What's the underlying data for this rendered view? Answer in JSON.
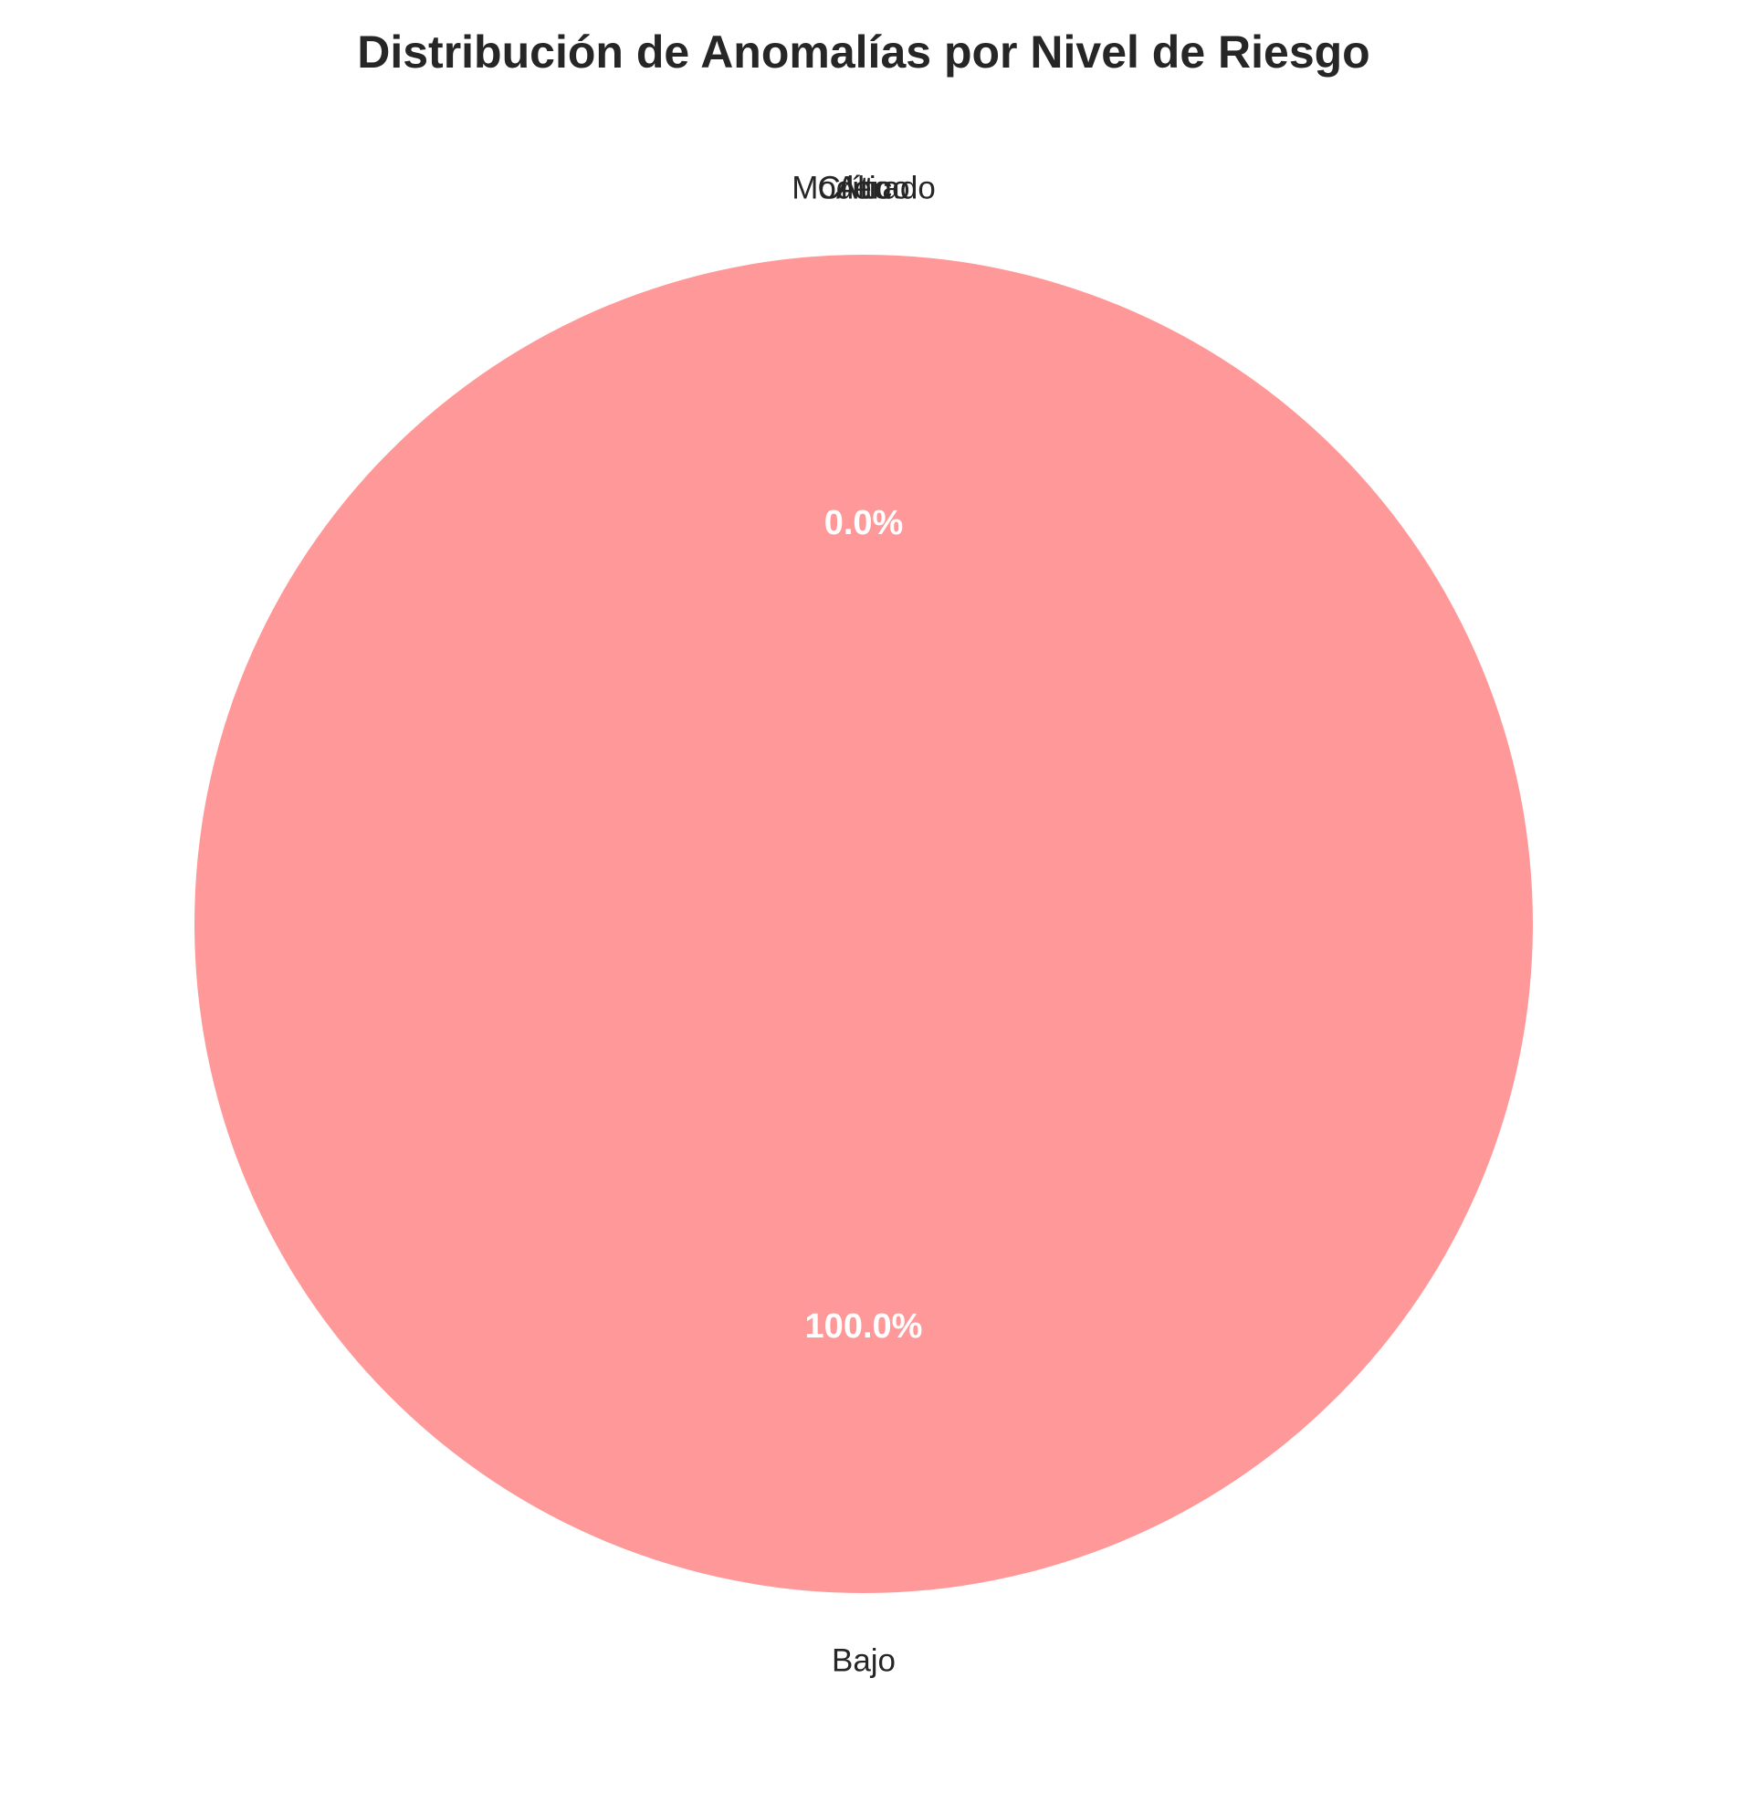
{
  "chart_data": {
    "type": "pie",
    "title": "Distribución de Anomalías por Nivel de Riesgo",
    "slices": [
      {
        "label": "Bajo",
        "value": 100.0,
        "pct_text": "100.0%",
        "color": "#ff9999"
      },
      {
        "label": "Moderado",
        "value": 0.0,
        "pct_text": "",
        "color": "#66b3ff"
      },
      {
        "label": "Alto",
        "value": 0.0,
        "pct_text": "0.0%",
        "color": "#99ff99"
      },
      {
        "label": "Crítico",
        "value": 0.0,
        "pct_text": "",
        "color": "#ffcc99"
      }
    ],
    "start_angle_deg": 90,
    "direction": "counterclockwise",
    "legend": "none"
  }
}
